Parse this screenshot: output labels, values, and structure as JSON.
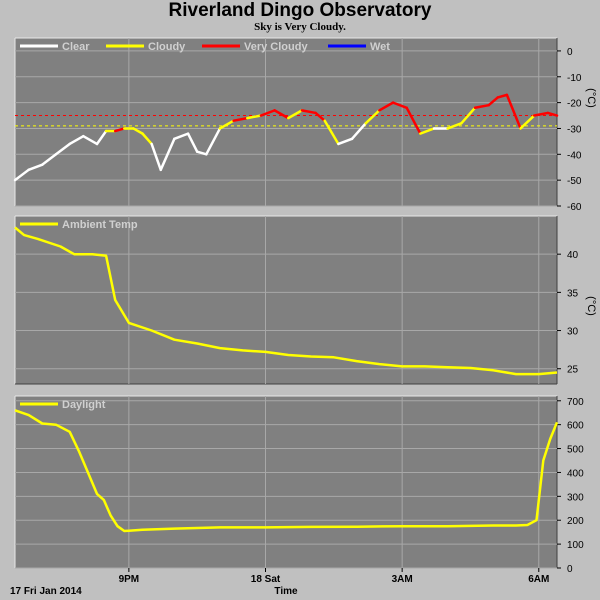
{
  "page": {
    "title": "Riverland Dingo Observatory",
    "subtitle": "Sky is Very Cloudy."
  },
  "colors": {
    "background": "#c0c0c0",
    "plot_background": "#808080",
    "grid": "#a8a8a8",
    "clear": "#ffffff",
    "cloudy": "#ffff00",
    "very_cloudy": "#ff0000",
    "wet": "#0000ff"
  },
  "x_axis": {
    "date_label": "17 Fri Jan 2014",
    "label": "Time",
    "ticks": [
      "9PM",
      "18 Sat",
      "3AM",
      "6AM"
    ],
    "tick_hours": [
      21,
      24,
      27,
      30
    ],
    "range_hours": [
      18.5,
      30.4
    ]
  },
  "chart_data": [
    {
      "type": "line",
      "name": "sky",
      "legend": [
        "Clear",
        "Cloudy",
        "Very Cloudy",
        "Wet"
      ],
      "ylabel": "(°C)",
      "ylim": [
        -60,
        5
      ],
      "yticks": [
        0,
        -10,
        -20,
        -30,
        -40,
        -50,
        -60
      ],
      "thresholds": [
        {
          "value": -25,
          "color": "#ff0000"
        },
        {
          "value": -29,
          "color": "#ffff00"
        }
      ],
      "x": [
        18.5,
        18.8,
        19.1,
        19.4,
        19.7,
        20.0,
        20.3,
        20.5,
        20.7,
        20.9,
        21.1,
        21.3,
        21.5,
        21.7,
        22.0,
        22.3,
        22.5,
        22.7,
        23.0,
        23.3,
        23.6,
        23.9,
        24.2,
        24.5,
        24.8,
        25.1,
        25.3,
        25.6,
        25.9,
        26.2,
        26.5,
        26.8,
        27.1,
        27.4,
        27.7,
        28.0,
        28.3,
        28.6,
        28.9,
        29.1,
        29.3,
        29.6,
        29.9,
        30.2,
        30.4
      ],
      "y": [
        -50,
        -46,
        -44,
        -40,
        -36,
        -33,
        -36,
        -31,
        -31,
        -30,
        -30,
        -32,
        -36,
        -46,
        -34,
        -32,
        -39,
        -40,
        -30,
        -27,
        -26,
        -25,
        -23,
        -26,
        -23,
        -24,
        -27,
        -36,
        -34,
        -28,
        -23,
        -20,
        -22,
        -32,
        -30,
        -30,
        -28,
        -22,
        -21,
        -18,
        -17,
        -30,
        -25,
        -24,
        -25
      ],
      "state": [
        "clear",
        "clear",
        "clear",
        "clear",
        "clear",
        "clear",
        "clear",
        "cloudy",
        "very_cloudy",
        "cloudy",
        "cloudy",
        "cloudy",
        "clear",
        "clear",
        "clear",
        "clear",
        "clear",
        "clear",
        "cloudy",
        "very_cloudy",
        "cloudy",
        "very_cloudy",
        "very_cloudy",
        "cloudy",
        "very_cloudy",
        "very_cloudy",
        "cloudy",
        "clear",
        "clear",
        "cloudy",
        "very_cloudy",
        "very_cloudy",
        "very_cloudy",
        "cloudy",
        "clear",
        "cloudy",
        "cloudy",
        "very_cloudy",
        "very_cloudy",
        "very_cloudy",
        "very_cloudy",
        "cloudy",
        "very_cloudy",
        "very_cloudy",
        "very_cloudy"
      ]
    },
    {
      "type": "line",
      "name": "ambient",
      "legend": [
        "Ambient Temp"
      ],
      "ylabel": "(°C)",
      "ylim": [
        23,
        45
      ],
      "yticks": [
        25,
        30,
        35,
        40
      ],
      "x": [
        18.5,
        18.7,
        19.0,
        19.5,
        19.8,
        20.2,
        20.5,
        20.7,
        21.0,
        21.5,
        22.0,
        22.5,
        23.0,
        23.5,
        24.0,
        24.5,
        25.0,
        25.5,
        26.0,
        26.5,
        27.0,
        27.5,
        28.0,
        28.5,
        29.0,
        29.5,
        30.0,
        30.4
      ],
      "y": [
        43.5,
        42.5,
        42.0,
        41.0,
        40.0,
        40.0,
        39.8,
        34.0,
        31.0,
        30.0,
        28.8,
        28.3,
        27.7,
        27.4,
        27.2,
        26.8,
        26.6,
        26.5,
        26.0,
        25.6,
        25.3,
        25.3,
        25.2,
        25.1,
        24.8,
        24.3,
        24.3,
        24.5
      ]
    },
    {
      "type": "line",
      "name": "daylight",
      "legend": [
        "Daylight"
      ],
      "ylim": [
        0,
        720
      ],
      "yticks": [
        0,
        100,
        200,
        300,
        400,
        500,
        600,
        700
      ],
      "x": [
        18.5,
        18.8,
        19.1,
        19.4,
        19.7,
        19.9,
        20.1,
        20.3,
        20.45,
        20.6,
        20.75,
        20.9,
        21.3,
        22.0,
        23.0,
        24.0,
        25.0,
        26.0,
        27.0,
        28.0,
        29.0,
        29.5,
        29.75,
        29.95,
        30.1,
        30.25,
        30.4
      ],
      "y": [
        660,
        640,
        605,
        600,
        570,
        490,
        400,
        310,
        285,
        220,
        175,
        155,
        160,
        165,
        170,
        170,
        172,
        173,
        175,
        175,
        178,
        178,
        180,
        200,
        450,
        540,
        610
      ]
    }
  ]
}
